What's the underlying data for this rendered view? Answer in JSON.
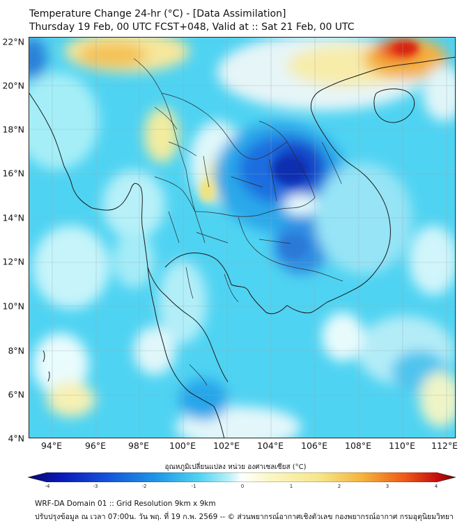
{
  "header": {
    "title_line1": "Temperature Change 24-hr (°C) - [Data Assimilation]",
    "title_line2": "Thursday 19 Feb, 00 UTC FCST+048, Valid at :: Sat 21 Feb, 00 UTC"
  },
  "map": {
    "lat_labels": [
      "22°N",
      "20°N",
      "18°N",
      "16°N",
      "14°N",
      "12°N",
      "10°N",
      "8°N",
      "6°N",
      "4°N"
    ],
    "lon_labels": [
      "94°E",
      "96°E",
      "98°E",
      "100°E",
      "102°E",
      "104°E",
      "106°E",
      "108°E",
      "110°E",
      "112°E"
    ],
    "background_color": "#4fd3f2"
  },
  "colorbar": {
    "title": "อุณหภูมิเปลี่ยนแปลง หน่วย องศาเซลเซียส (°C)",
    "tick_labels": [
      "-4",
      "-3",
      "-2",
      "-1",
      "0",
      "1",
      "2",
      "3",
      "4"
    ]
  },
  "footer": {
    "line1": "WRF-DA Domain 01 :: Grid Resolution 9km x 9km",
    "line2": "ปรับปรุงข้อมูล ณ เวลา 07:00น. วัน พฤ. ที่ 19 ก.พ. 2569 -- © ส่วนพยากรณ์อากาศเชิงตัวเลข กองพยากรณ์อากาศ กรมอุตุนิยมวิทยา"
  }
}
